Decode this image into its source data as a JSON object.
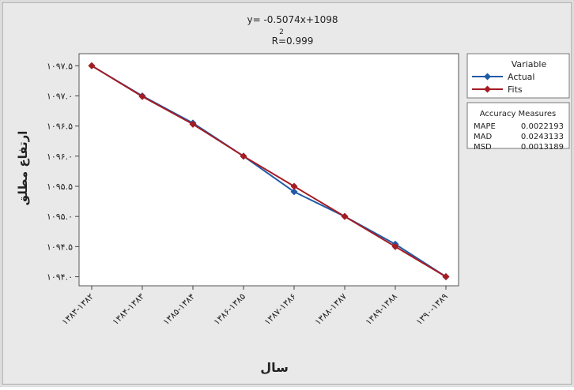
{
  "chart_data": {
    "type": "line",
    "equation": "y= -0.5074x+1098",
    "r2_superscript": "2",
    "r2_text": "R=0.999",
    "xlabel": "سال",
    "ylabel": "ارتفاع مطلق",
    "categories": [
      "۱۳۸۳-۱۳۸۲",
      "۱۳۸۴-۱۳۸۳",
      "۱۳۸۵-۱۳۸۴",
      "۱۳۸۶-۱۳۸۵",
      "۱۳۸۷-۱۳۸۶",
      "۱۳۸۸-۱۳۸۷",
      "۱۳۸۹-۱۳۸۸",
      "۱۳۹۰-۱۳۸۹"
    ],
    "y_ticks": [
      1094.0,
      1094.5,
      1095.0,
      1095.5,
      1096.0,
      1096.5,
      1097.0,
      1097.5
    ],
    "y_tick_labels": [
      "۱۰۹۴.۰",
      "۱۰۹۴.۵",
      "۱۰۹۵.۰",
      "۱۰۹۵.۵",
      "۱۰۹۶.۰",
      "۱۰۹۶.۵",
      "۱۰۹۷.۰",
      "۱۰۹۷.۵"
    ],
    "ylim": [
      1093.85,
      1097.7
    ],
    "series": [
      {
        "name": "Actual",
        "color": "#1f5aa6",
        "marker": "diamond",
        "values": [
          1097.5,
          1097.0,
          1096.55,
          1096.0,
          1095.41,
          1095.0,
          1094.54,
          1094.0
        ]
      },
      {
        "name": "Fits",
        "color": "#a61c23",
        "marker": "diamond",
        "values": [
          1097.5,
          1096.99,
          1096.53,
          1096.0,
          1095.5,
          1095.0,
          1094.5,
          1094.0
        ]
      }
    ],
    "legend": {
      "title": "Variable",
      "position": "right"
    },
    "accuracy": {
      "title": "Accuracy Measures",
      "rows": [
        {
          "label": "MAPE",
          "value": "0.0022193"
        },
        {
          "label": "MAD",
          "value": "0.0243133"
        },
        {
          "label": "MSD",
          "value": "0.0013189"
        }
      ]
    },
    "colors": {
      "background": "#e9e9e9",
      "plot_area": "#ffffff"
    }
  }
}
